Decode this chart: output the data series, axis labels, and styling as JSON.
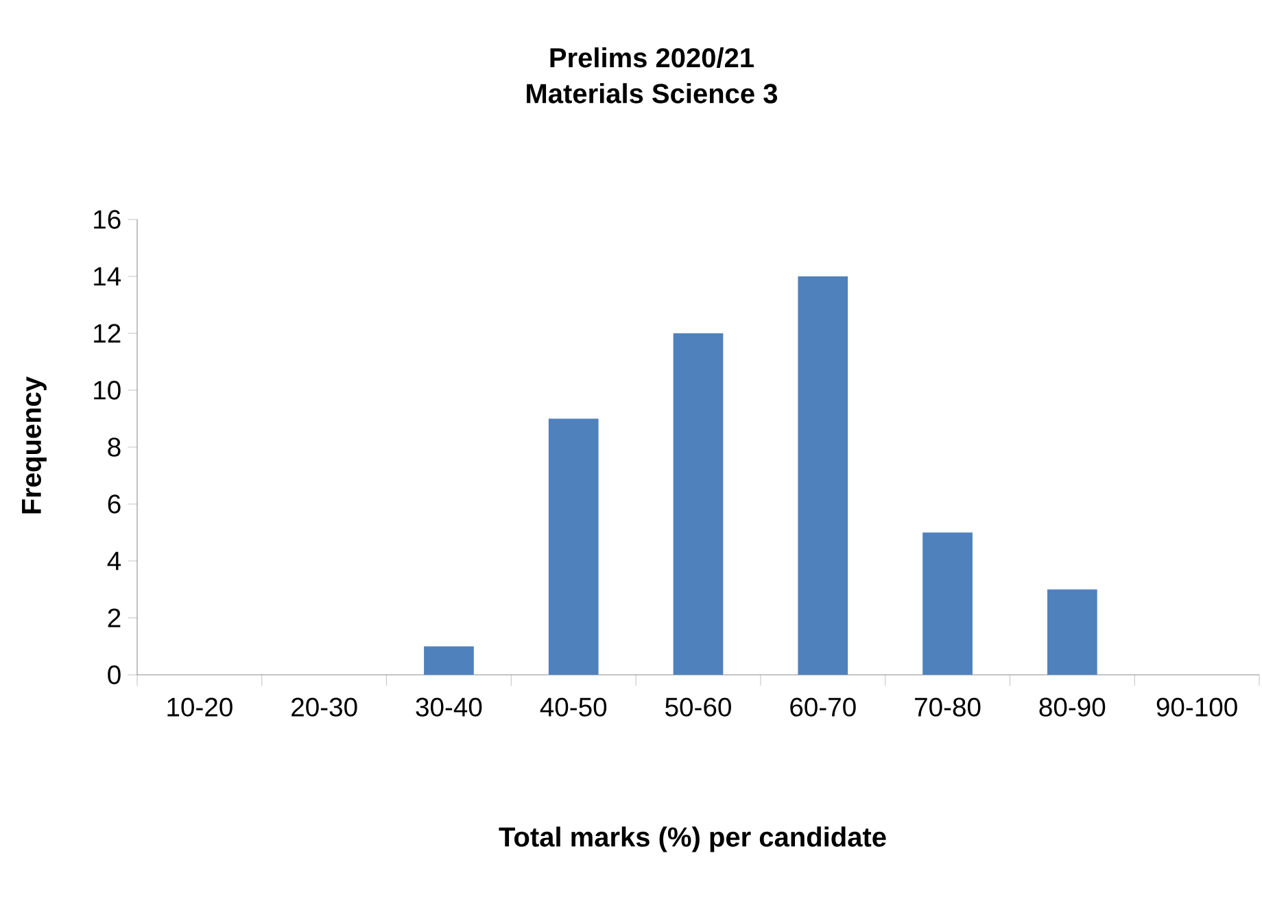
{
  "chart_data": {
    "type": "bar",
    "title": "Prelims  2020/21",
    "subtitle": "Materials  Science  3",
    "xlabel": "Total marks  (%) per candidate",
    "ylabel": "Frequency",
    "categories": [
      "10-20",
      "20-30",
      "30-40",
      "40-50",
      "50-60",
      "60-70",
      "70-80",
      "80-90",
      "90-100"
    ],
    "values": [
      0,
      0,
      1,
      9,
      12,
      14,
      5,
      3,
      0
    ],
    "color": "#4f81bd",
    "ylim": [
      0,
      16
    ],
    "yticks": [
      0,
      2,
      4,
      6,
      8,
      10,
      12,
      14,
      16
    ]
  }
}
